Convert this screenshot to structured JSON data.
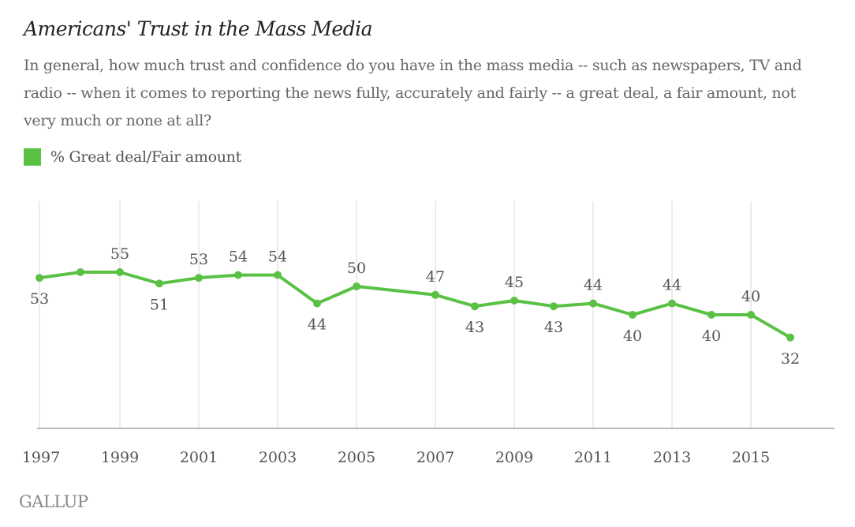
{
  "title": "Americans' Trust in the Mass Media",
  "subtitle": "In general, how much trust and confidence do you have in the mass media -- such as newspapers, TV and radio -- when it comes to reporting the news fully, accurately and fairly -- a great deal, a fair amount, not very much or none at all?",
  "legend_label": "% Great deal/Fair amount",
  "source_logo": "GALLUP",
  "colors": {
    "series": "#5ac145",
    "grid": "#d9d9d9",
    "axis": "#bbbbbb",
    "label": "#555555"
  },
  "chart_data": {
    "type": "line",
    "x": [
      1997,
      1998,
      1999,
      2000,
      2001,
      2002,
      2003,
      2004,
      2005,
      2007,
      2008,
      2009,
      2010,
      2011,
      2012,
      2013,
      2014,
      2015,
      2016
    ],
    "series": [
      {
        "name": "% Great deal/Fair amount",
        "values": [
          53,
          55,
          55,
          51,
          53,
          54,
          54,
          44,
          50,
          47,
          43,
          45,
          43,
          44,
          40,
          44,
          40,
          40,
          32
        ],
        "labels": [
          "53",
          "",
          "55",
          "51",
          "53",
          "54",
          "54",
          "44",
          "50",
          "47",
          "43",
          "45",
          "43",
          "44",
          "40",
          "44",
          "40",
          "40",
          "32"
        ]
      }
    ],
    "xticks": [
      1997,
      1999,
      2001,
      2003,
      2005,
      2007,
      2009,
      2011,
      2013,
      2015
    ],
    "xlim": [
      1997,
      2017
    ],
    "ylim": [
      0,
      80
    ],
    "grid": "vertical"
  }
}
